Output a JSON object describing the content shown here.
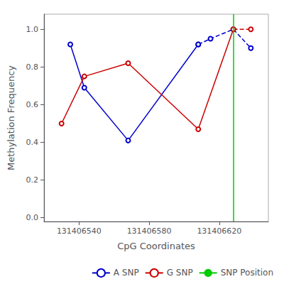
{
  "chart_data": {
    "type": "line",
    "xlabel": "CpG Coordinates",
    "ylabel": "Methylation Frequency",
    "xlim": [
      131406520,
      131406648
    ],
    "xticks": [
      131406540,
      131406580,
      131406620
    ],
    "ylim": [
      -0.02,
      1.08
    ],
    "yticks": [
      {
        "value": 0.0,
        "label": "0.0"
      },
      0.2,
      0.4,
      0.6,
      0.8,
      {
        "value": 1.0,
        "label": "1.0"
      }
    ],
    "grid": false,
    "legend": "lower right",
    "series": [
      {
        "name": "A SNP",
        "color": "#0000cc",
        "line_style": "solid",
        "marker": "circle",
        "x": [
          131406535,
          131406543,
          131406568,
          131406608
        ],
        "values": [
          0.92,
          0.69,
          0.41,
          0.92
        ]
      },
      {
        "name": "A SNP",
        "color": "#0000cc",
        "line_style": "dashed",
        "marker": "circle",
        "x": [
          131406608,
          131406615,
          131406628,
          131406638
        ],
        "values": [
          0.92,
          0.95,
          1.0,
          0.9
        ]
      },
      {
        "name": "G SNP",
        "color": "#cc0000",
        "line_style": "solid",
        "marker": "circle",
        "x": [
          131406530,
          131406543,
          131406568,
          131406608
        ],
        "values": [
          0.5,
          0.75,
          0.82,
          0.47
        ]
      },
      {
        "name": "G SNP",
        "color": "#cc0000",
        "line_style": "solid",
        "marker": "none",
        "x": [
          131406608,
          131406628
        ],
        "values": [
          0.47,
          1.0
        ]
      },
      {
        "name": "G SNP",
        "color": "#cc0000",
        "line_style": "dashed",
        "marker": "circle",
        "x": [
          131406628,
          131406638
        ],
        "values": [
          1.0,
          1.0
        ]
      }
    ],
    "vline": {
      "name": "SNP Position",
      "color": "#00cc00",
      "x": 131406628
    }
  }
}
